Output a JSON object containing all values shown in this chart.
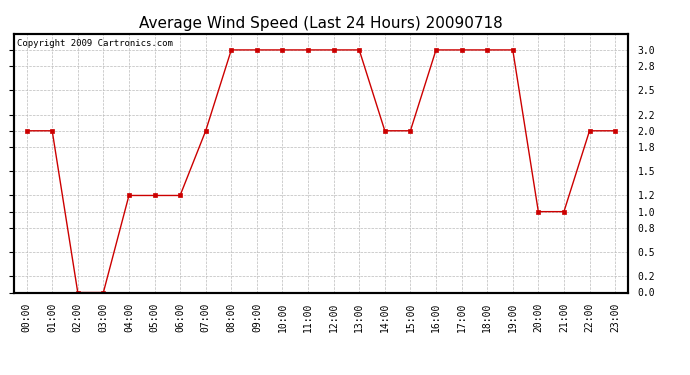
{
  "title": "Average Wind Speed (Last 24 Hours) 20090718",
  "copyright_text": "Copyright 2009 Cartronics.com",
  "x_labels": [
    "00:00",
    "01:00",
    "02:00",
    "03:00",
    "04:00",
    "05:00",
    "06:00",
    "07:00",
    "08:00",
    "09:00",
    "10:00",
    "11:00",
    "12:00",
    "13:00",
    "14:00",
    "15:00",
    "16:00",
    "17:00",
    "18:00",
    "19:00",
    "20:00",
    "21:00",
    "22:00",
    "23:00"
  ],
  "y_values": [
    2.0,
    2.0,
    0.0,
    0.0,
    1.2,
    1.2,
    1.2,
    2.0,
    3.0,
    3.0,
    3.0,
    3.0,
    3.0,
    3.0,
    2.0,
    2.0,
    3.0,
    3.0,
    3.0,
    3.0,
    1.0,
    1.0,
    2.0,
    2.0
  ],
  "line_color": "#cc0000",
  "marker_color": "#cc0000",
  "bg_color": "#ffffff",
  "plot_bg_color": "#ffffff",
  "grid_color": "#bbbbbb",
  "ylim": [
    0.0,
    3.2
  ],
  "yticks": [
    0.0,
    0.2,
    0.5,
    0.8,
    1.0,
    1.2,
    1.5,
    1.8,
    2.0,
    2.2,
    2.5,
    2.8,
    3.0
  ],
  "ytick_labels": [
    "0.0",
    "0.2",
    "0.5",
    "0.8",
    "1.0",
    "1.2",
    "1.5",
    "1.8",
    "2.0",
    "2.2",
    "2.5",
    "2.8",
    "3.0"
  ],
  "title_fontsize": 11,
  "copyright_fontsize": 6.5,
  "tick_fontsize": 7,
  "figwidth": 6.9,
  "figheight": 3.75,
  "dpi": 100
}
